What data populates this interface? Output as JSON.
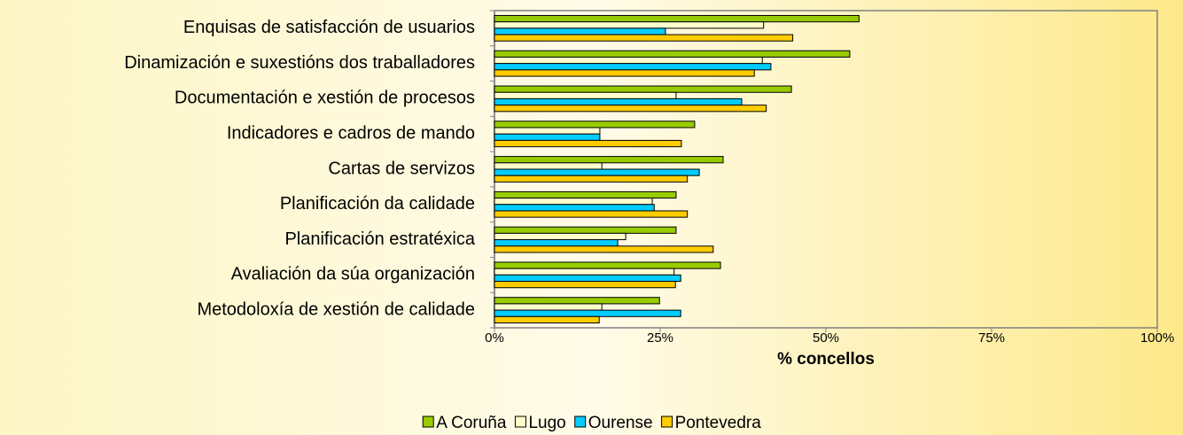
{
  "chart_data": {
    "type": "bar",
    "orientation": "horizontal",
    "x_label": "% concellos",
    "categories": [
      "Enquisas de satisfacción de usuarios",
      "Dinamización e suxestións dos traballadores",
      "Documentación e xestión de procesos",
      "Indicadores e cadros de mando",
      "Cartas de servizos",
      "Planificación da calidade",
      "Planificación estratéxica",
      "Avaliación da súa organización",
      "Metodoloxía de xestión de calidade"
    ],
    "series": [
      {
        "name": "A Coruña",
        "color": "#99cc00",
        "values": [
          55,
          53.6,
          44.8,
          30.2,
          34.5,
          27.4,
          27.4,
          34.1,
          24.9
        ]
      },
      {
        "name": "Lugo",
        "color": "#ffffcc",
        "values": [
          40.6,
          40.4,
          27.4,
          15.9,
          16.2,
          23.8,
          19.8,
          27.1,
          16.2
        ]
      },
      {
        "name": "Ourense",
        "color": "#00ccff",
        "values": [
          25.8,
          41.7,
          37.3,
          15.9,
          30.9,
          24.1,
          18.6,
          28.1,
          28.1
        ]
      },
      {
        "name": "Pontevedra",
        "color": "#ffcc00",
        "values": [
          45,
          39.2,
          41,
          28.2,
          29.1,
          29.1,
          33,
          27.3,
          15.8
        ]
      }
    ],
    "xlim": [
      0,
      100
    ],
    "xticks": [
      {
        "value": 0,
        "label": "0%"
      },
      {
        "value": 25,
        "label": "25%"
      },
      {
        "value": 50,
        "label": "50%"
      },
      {
        "value": 75,
        "label": "75%"
      },
      {
        "value": 100,
        "label": "100%"
      }
    ],
    "grid": false,
    "legend": "bottom"
  }
}
